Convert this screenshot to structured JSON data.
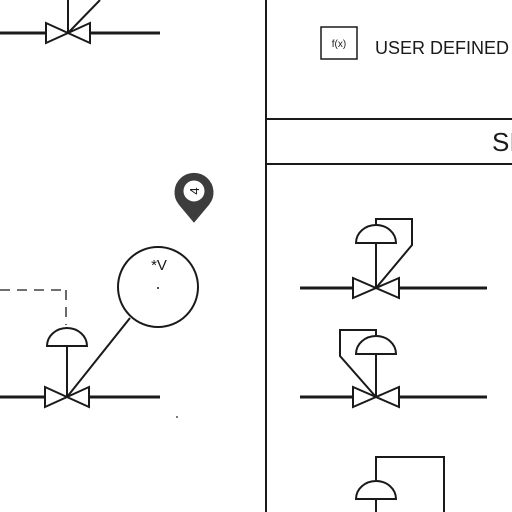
{
  "legend": {
    "fx_symbol": "f(x)",
    "user_defined_label": "USER DEFINED",
    "section_label": "SI"
  },
  "instrument": {
    "tag": "*V"
  },
  "marker": {
    "label": "4",
    "color": "#3d3d3d"
  }
}
